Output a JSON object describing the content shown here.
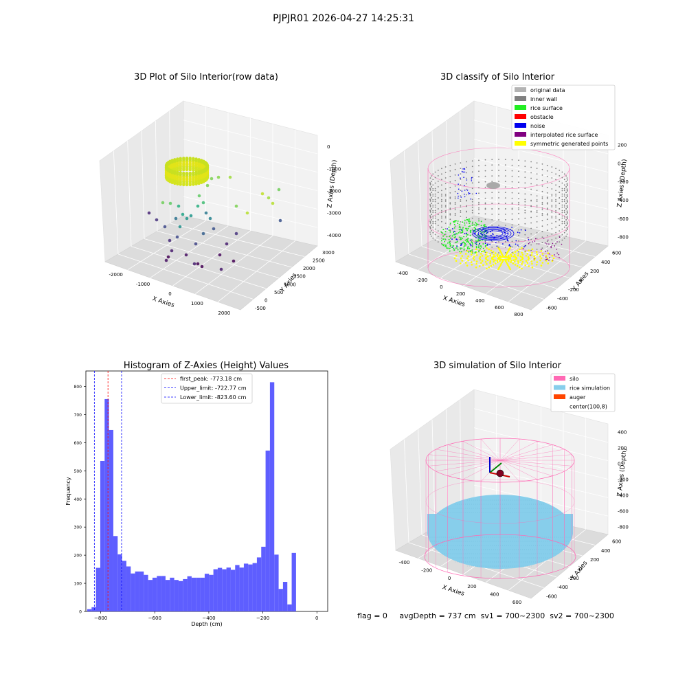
{
  "figure": {
    "suptitle": "PJPJR01 2026-04-27 14:25:31",
    "footer": "flag = 0     avgDepth = 737 cm  sv1 = 700~2300  sv2 = 700~2300"
  },
  "colors": {
    "hist_bar": "#4d4dff",
    "peak_line": "#ff0000",
    "limit_line": "#0000ff",
    "wall_gray": "#808080",
    "orig_gray": "#b3b3b3",
    "rice_green": "#22ee22",
    "noise_blue": "#0000ee",
    "interp_purple": "#800080",
    "sym_yellow": "#ffff00",
    "silo_pink": "#ff69b4",
    "rice_sim": "#87ceeb",
    "auger": "#ff4500"
  },
  "chart_data": [
    {
      "type": "scatter",
      "title": "3D Plot of Silo Interior(row data)",
      "xlabel": "X Axies",
      "ylabel": "Y Axies",
      "zlabel": "Z Axies (Depth)",
      "x_ticks": [
        "-2000",
        "-1000",
        "0",
        "1000",
        "2000"
      ],
      "y_ticks": [
        "-500",
        "0",
        "500",
        "1000",
        "1500",
        "2000",
        "2500",
        "3000"
      ],
      "z_ticks": [
        "0",
        "-1000",
        "-2000",
        "-3000",
        "-4000"
      ],
      "xlim": [
        -2500,
        2500
      ],
      "ylim": [
        -700,
        3300
      ],
      "zlim": [
        -4500,
        0
      ]
    },
    {
      "type": "scatter",
      "title": "3D classify of Silo Interior",
      "xlabel": "X Axies",
      "ylabel": "Y Axies",
      "zlabel": "Z Axies (Depth)",
      "x_ticks": [
        "-400",
        "-200",
        "0",
        "200",
        "400",
        "600",
        "800"
      ],
      "y_ticks": [
        "-600",
        "-400",
        "-200",
        "0",
        "200",
        "400",
        "600"
      ],
      "z_ticks": [
        "200",
        "0",
        "-200",
        "-400",
        "-600",
        "-800"
      ],
      "legend": [
        {
          "label": "original data",
          "color": "#b3b3b3"
        },
        {
          "label": "inner wall",
          "color": "#808080"
        },
        {
          "label": "rice surface",
          "color": "#22ee22"
        },
        {
          "label": "obstacle",
          "color": "#ff0000"
        },
        {
          "label": "noise",
          "color": "#0000ee"
        },
        {
          "label": "interpolated rice surface",
          "color": "#800080"
        },
        {
          "label": "symmetric generated points",
          "color": "#ffff00"
        }
      ]
    },
    {
      "type": "bar",
      "title": "Histogram of Z-Axies (Height) Values",
      "xlabel": "Depth (cm)",
      "ylabel": "Frequency",
      "xlim": [
        -855,
        40
      ],
      "ylim": [
        0,
        855
      ],
      "x_ticks": [
        -800,
        -600,
        -400,
        -200,
        0
      ],
      "y_ticks": [
        0,
        100,
        200,
        300,
        400,
        500,
        600,
        700,
        800
      ],
      "bin_start": -850,
      "bin_width": 16.1,
      "values": [
        8,
        15,
        155,
        535,
        755,
        645,
        268,
        203,
        180,
        160,
        135,
        142,
        142,
        130,
        112,
        120,
        126,
        126,
        112,
        120,
        112,
        108,
        115,
        125,
        120,
        120,
        120,
        134,
        130,
        150,
        155,
        150,
        156,
        148,
        165,
        156,
        170,
        167,
        172,
        192,
        230,
        572,
        815,
        202,
        80,
        105,
        25,
        208
      ],
      "lines": [
        {
          "label": "first_peak: -773.18 cm",
          "x": -773.18,
          "color": "#ff0000"
        },
        {
          "label": "Upper_limit: -722.77 cm",
          "x": -722.77,
          "color": "#0000ff"
        },
        {
          "label": "Lower_limit: -823.60 cm",
          "x": -823.6,
          "color": "#0000ff"
        }
      ],
      "legend_position": "top-center"
    },
    {
      "type": "scatter",
      "title": "3D simulation of Silo Interior",
      "xlabel": "X Axies",
      "ylabel": "Y Axies",
      "zlabel": "Z Axies (Depth)",
      "x_ticks": [
        "-400",
        "-200",
        "0",
        "200",
        "400",
        "600"
      ],
      "y_ticks": [
        "-600",
        "-400",
        "-200",
        "0",
        "200",
        "400",
        "600"
      ],
      "z_ticks": [
        "400",
        "200",
        "0",
        "-200",
        "-400",
        "-600",
        "-800"
      ],
      "legend": [
        {
          "label": "silo",
          "color": "#ff69b4"
        },
        {
          "label": "rice simulation",
          "color": "#87ceeb"
        },
        {
          "label": "auger",
          "color": "#ff4500"
        },
        {
          "label": "center(100,8)",
          "color": ""
        }
      ]
    }
  ]
}
